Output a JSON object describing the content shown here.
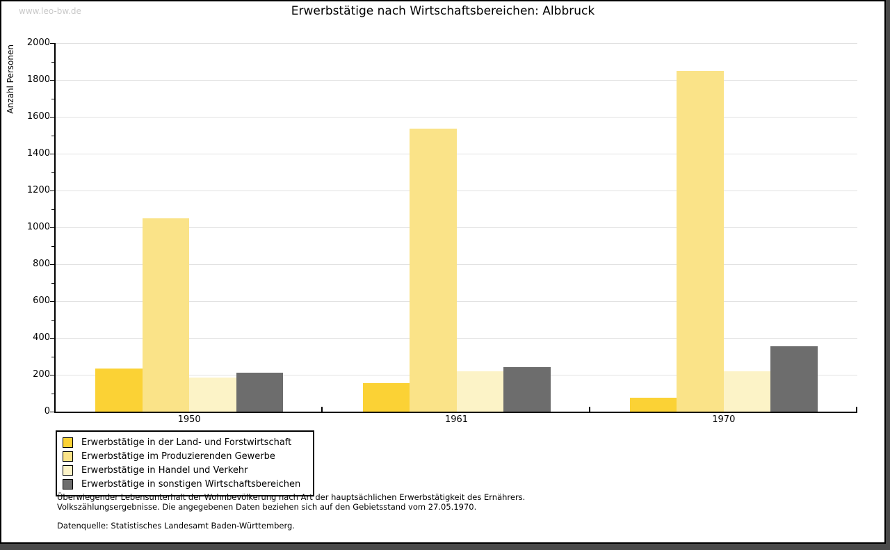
{
  "watermark": "www.leo-bw.de",
  "title": "Erwerbstätige nach Wirtschaftsbereichen: Albbruck",
  "chart_data": {
    "type": "bar",
    "title": "Erwerbstätige nach Wirtschaftsbereichen: Albbruck",
    "xlabel": "",
    "ylabel": "Anzahl Personen",
    "ylim": [
      0,
      2000
    ],
    "ytick_step": 200,
    "ytick_minor_step": 100,
    "ytick_labels": [
      "0",
      "200",
      "400",
      "600",
      "800",
      "1000",
      "1200",
      "1400",
      "1600",
      "1800",
      "2000"
    ],
    "grid": true,
    "legend_position": "bottom-left",
    "categories": [
      "1950",
      "1961",
      "1970"
    ],
    "series": [
      {
        "name": "Erwerbstätige in der Land- und Forstwirtschaft",
        "color": "#FBD235",
        "values": [
          235,
          155,
          75
        ]
      },
      {
        "name": "Erwerbstätige im Produzierenden Gewerbe",
        "color": "#FAE388",
        "values": [
          1050,
          1535,
          1850
        ]
      },
      {
        "name": "Erwerbstätige in Handel und Verkehr",
        "color": "#FCF3C7",
        "values": [
          185,
          220,
          220
        ]
      },
      {
        "name": "Erwerbstätige in sonstigen Wirtschaftsbereichen",
        "color": "#6D6D6D",
        "values": [
          210,
          240,
          355
        ]
      }
    ]
  },
  "colors": {
    "gridline": "#e1e1e1",
    "axis": "#000000",
    "frame_shadow": "#4a4a4a",
    "watermark": "#c9c9c9"
  },
  "footnotes": {
    "line1": "Überwiegender Lebensunterhalt der Wohnbevölkerung nach Art der hauptsächlichen Erwerbstätigkeit des Ernährers.",
    "line2": "Volkszählungsergebnisse. Die angegebenen Daten beziehen sich auf den Gebietsstand vom 27.05.1970.",
    "source": "Datenquelle: Statistisches Landesamt Baden-Württemberg."
  }
}
